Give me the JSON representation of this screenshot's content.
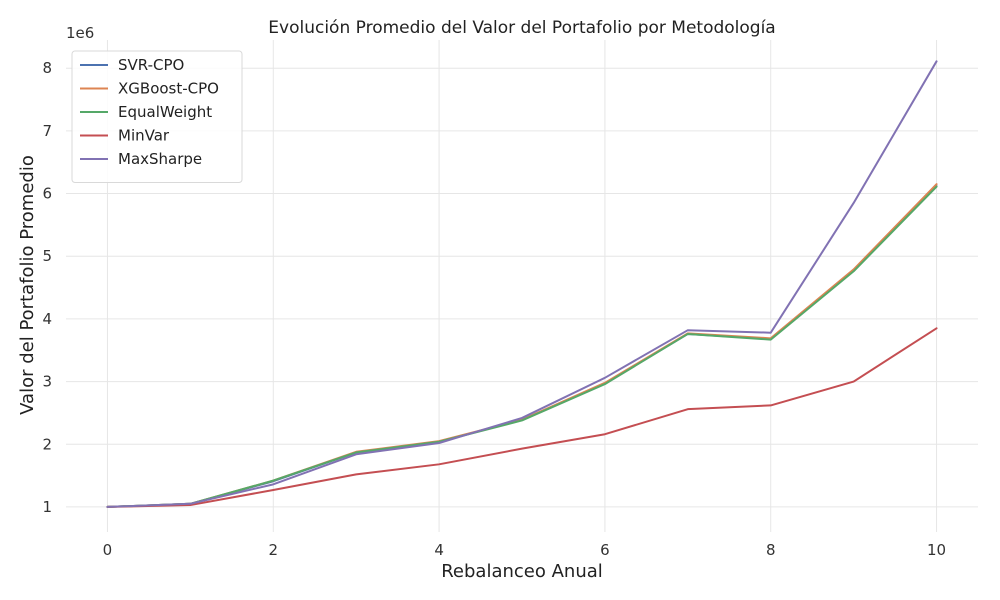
{
  "chart_data": {
    "type": "line",
    "title": "Evolución Promedio del Valor del Portafolio por Metodología",
    "xlabel": "Rebalanceo Anual",
    "ylabel": "Valor del Portafolio Promedio",
    "y_offset_label": "1e6",
    "xlim": [
      -0.5,
      10.5
    ],
    "ylim": [
      0.6,
      8.45
    ],
    "xticks": [
      0,
      2,
      4,
      6,
      8,
      10
    ],
    "yticks": [
      1,
      2,
      3,
      4,
      5,
      6,
      7,
      8
    ],
    "grid": true,
    "legend_position": "top-left",
    "x": [
      0,
      1,
      2,
      3,
      4,
      5,
      6,
      7,
      8,
      9,
      10
    ],
    "series": [
      {
        "name": "SVR-CPO",
        "color": "#4c72b0",
        "values": [
          1.0,
          1.05,
          1.41,
          1.87,
          2.04,
          2.39,
          2.97,
          3.76,
          3.68,
          4.77,
          6.12
        ]
      },
      {
        "name": "XGBoost-CPO",
        "color": "#dd8452",
        "values": [
          1.0,
          1.05,
          1.42,
          1.88,
          2.05,
          2.39,
          2.98,
          3.77,
          3.69,
          4.79,
          6.15
        ]
      },
      {
        "name": "EqualWeight",
        "color": "#55a868",
        "values": [
          1.0,
          1.05,
          1.42,
          1.87,
          2.04,
          2.38,
          2.96,
          3.76,
          3.67,
          4.76,
          6.11
        ]
      },
      {
        "name": "MinVar",
        "color": "#c44e52",
        "values": [
          1.0,
          1.03,
          1.27,
          1.52,
          1.68,
          1.93,
          2.16,
          2.56,
          2.62,
          3.0,
          3.85
        ]
      },
      {
        "name": "MaxSharpe",
        "color": "#8172b3",
        "values": [
          1.0,
          1.05,
          1.36,
          1.84,
          2.02,
          2.42,
          3.06,
          3.82,
          3.78,
          5.85,
          8.11
        ]
      }
    ]
  }
}
